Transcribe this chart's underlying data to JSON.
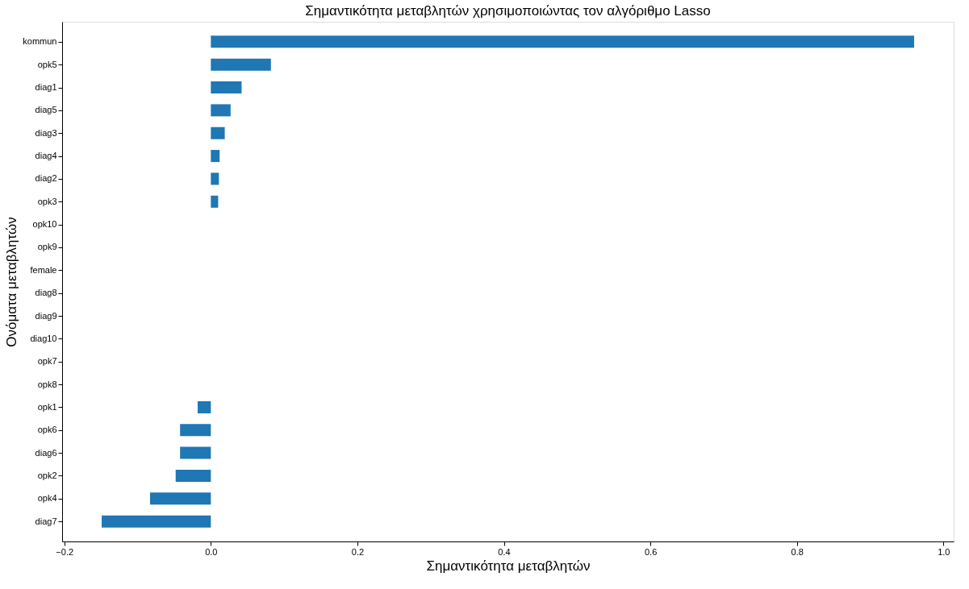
{
  "chart_data": {
    "type": "bar",
    "orientation": "horizontal",
    "title": "Σημαντικότητα μεταβλητών χρησιμοποιώντας τον αλγόριθμο Lasso",
    "xlabel": "Σημαντικότητα μεταβλητών",
    "ylabel": "Ονόματα μεταβλητών",
    "categories": [
      "kommun",
      "opk5",
      "diag1",
      "diag5",
      "diag3",
      "diag4",
      "diag2",
      "opk3",
      "opk10",
      "opk9",
      "female",
      "diag8",
      "diag9",
      "diag10",
      "opk7",
      "opk8",
      "opk1",
      "opk6",
      "diag6",
      "opk2",
      "opk4",
      "diag7"
    ],
    "values": [
      0.96,
      0.082,
      0.042,
      0.027,
      0.019,
      0.012,
      0.011,
      0.01,
      0,
      0,
      0,
      0,
      0,
      0,
      0,
      0,
      -0.018,
      -0.042,
      -0.042,
      -0.048,
      -0.083,
      -0.149
    ],
    "color": "#1f77b4",
    "xlim": [
      -0.203,
      1.014
    ],
    "xticks": [
      {
        "value": -0.2,
        "label": "−0.2"
      },
      {
        "value": 0.0,
        "label": "0.0"
      },
      {
        "value": 0.2,
        "label": "0.2"
      },
      {
        "value": 0.4,
        "label": "0.4"
      },
      {
        "value": 0.6,
        "label": "0.6"
      },
      {
        "value": 0.8,
        "label": "0.8"
      },
      {
        "value": 1.0,
        "label": "1.0"
      }
    ],
    "grid": false
  }
}
